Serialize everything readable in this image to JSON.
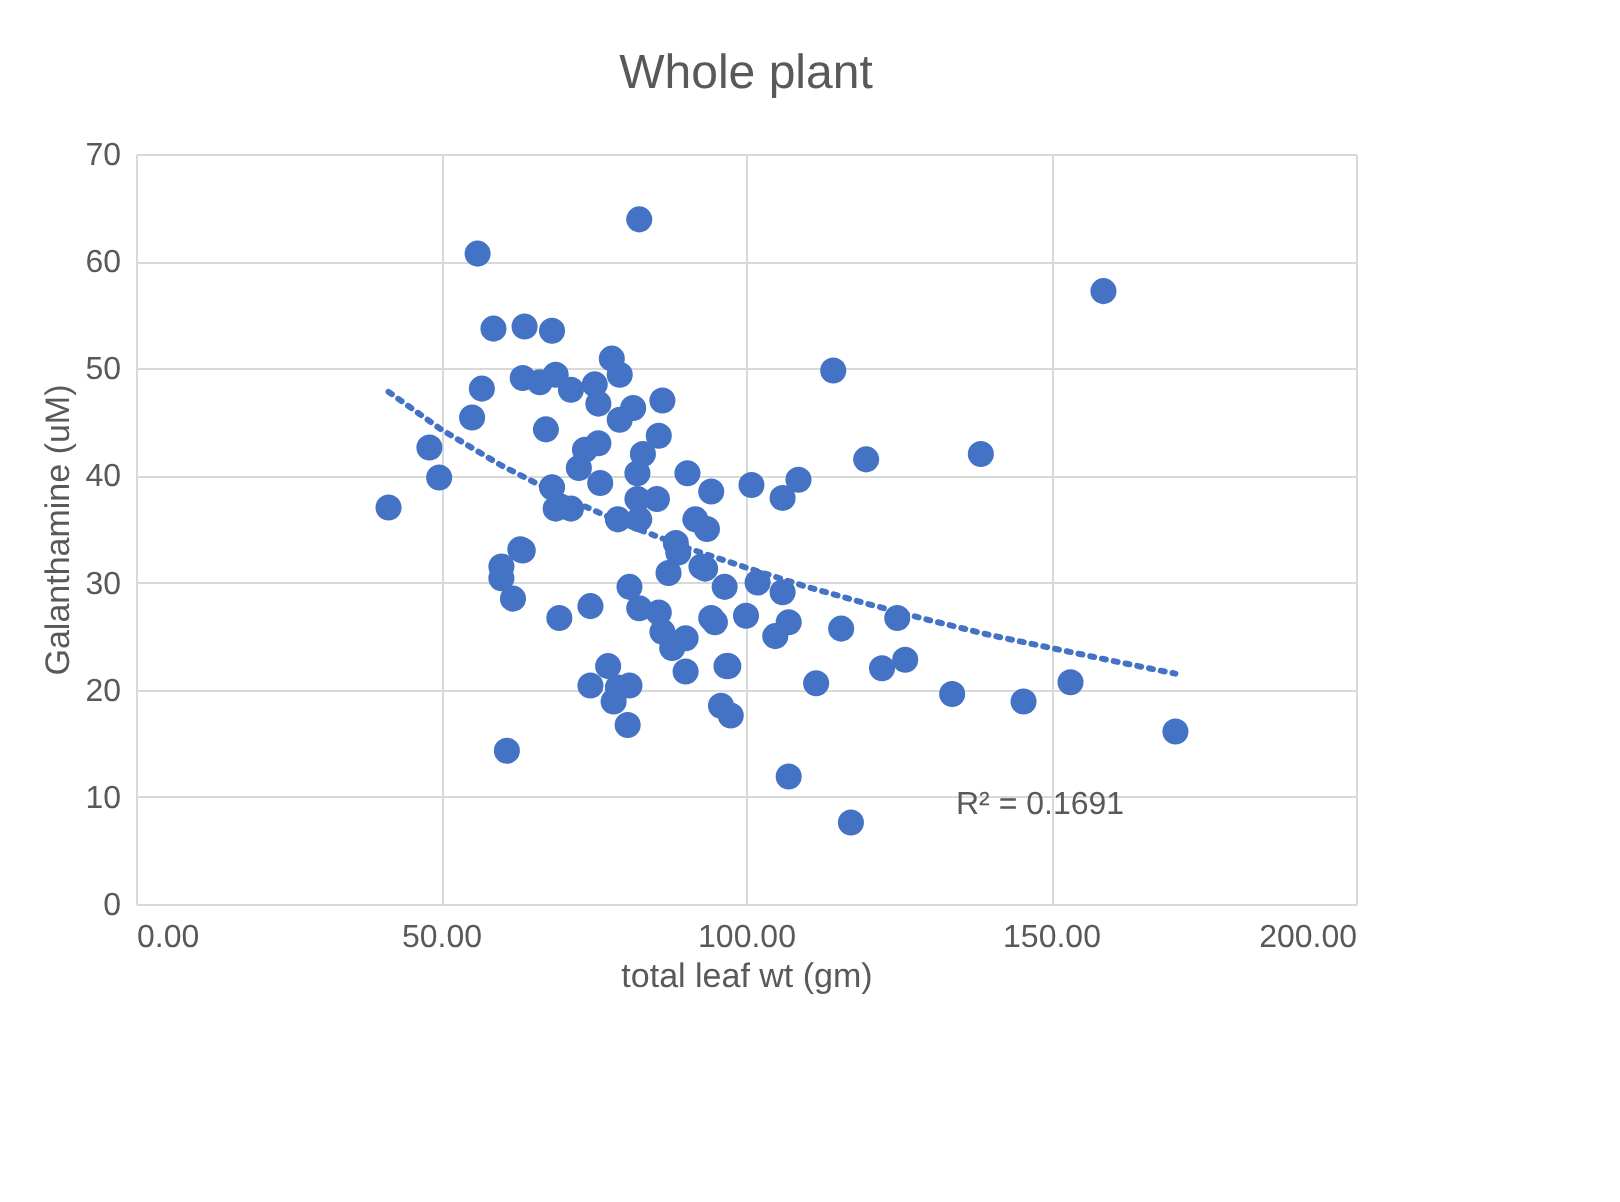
{
  "chart_data": {
    "type": "scatter",
    "title": "Whole plant",
    "xlabel": "total leaf wt (gm)",
    "ylabel": "Galanthamine (uM)",
    "xlim": [
      0,
      200
    ],
    "xticks": [
      {
        "value": 0,
        "label": "0.00"
      },
      {
        "value": 50,
        "label": "50.00"
      },
      {
        "value": 100,
        "label": "100.00"
      },
      {
        "value": 150,
        "label": "150.00"
      },
      {
        "value": 200,
        "label": "200.00"
      }
    ],
    "ylim": [
      0,
      70
    ],
    "yticks": [
      0,
      10,
      20,
      30,
      40,
      50,
      60,
      70
    ],
    "grid": true,
    "legend": false,
    "marker": "circle",
    "annotations": [
      "R² = 0.1691"
    ],
    "series": [
      {
        "color": "#4472c4",
        "x": [
          82.5,
          56,
          58.6,
          63.7,
          68.2,
          78,
          79.3,
          63.4,
          66.2,
          68.8,
          56.7,
          71.3,
          75.2,
          75.8,
          81.5,
          86.3,
          55.1,
          79.3,
          67.2,
          85.7,
          48.1,
          73.6,
          75.8,
          83.1,
          49.7,
          72.6,
          76.1,
          82.2,
          90.4,
          68.2,
          94.3,
          82.2,
          85.4,
          41.4,
          68.8,
          71.3,
          79,
          82.5,
          91.7,
          93.6,
          88.5,
          63,
          59.9,
          63.4,
          59.9,
          61.8,
          69.4,
          74.5,
          80.9,
          82.5,
          85.7,
          86.3,
          90.1,
          87.9,
          90.1,
          93.3,
          96.5,
          94.3,
          96.8,
          95.9,
          97.5,
          77.4,
          74.5,
          79,
          80.9,
          78.3,
          80.6,
          60.8,
          88.9,
          87.3,
          158.6,
          114.3,
          119.7,
          138.5,
          100.9,
          108.6,
          106,
          101.9,
          106,
          100,
          104.8,
          107,
          115.6,
          124.8,
          97.1,
          111.5,
          122.3,
          126.1,
          133.8,
          145.5,
          153.2,
          170.4,
          107,
          117.2,
          92.7,
          94.9
        ],
        "values": [
          63.9,
          60.7,
          53.7,
          53.9,
          53.5,
          50.9,
          49.4,
          49.1,
          48.7,
          49.4,
          48.1,
          48,
          48.5,
          46.7,
          46.3,
          47,
          45.4,
          45.2,
          44.3,
          43.7,
          42.6,
          42.4,
          43,
          42,
          39.8,
          40.7,
          39.3,
          40.2,
          40.2,
          38.9,
          38.5,
          37.8,
          37.8,
          37,
          36.9,
          36.9,
          35.9,
          35.9,
          35.9,
          35,
          33.7,
          33.1,
          31.5,
          33,
          30.4,
          28.5,
          26.7,
          27.8,
          29.6,
          27.6,
          27.2,
          25.4,
          24.8,
          23.9,
          21.7,
          31.3,
          29.6,
          26.7,
          22.2,
          18.5,
          17.6,
          22.2,
          20.4,
          20.2,
          20.4,
          18.9,
          16.7,
          14.3,
          32.8,
          30.9,
          57.2,
          49.8,
          41.5,
          42,
          39.1,
          39.6,
          37.9,
          30,
          29.1,
          26.9,
          25,
          26.3,
          25.7,
          26.7,
          22.2,
          20.6,
          22,
          22.8,
          19.6,
          18.9,
          20.7,
          16.1,
          11.9,
          7.6,
          31.5,
          26.3
        ]
      },
      {
        "type": "line",
        "color": "#4472c4",
        "line_style": "dotted",
        "marker": "none",
        "x": [
          41.4,
          50,
          60,
          70,
          80,
          90,
          100,
          110,
          120,
          130,
          140,
          150,
          160,
          170.4
        ],
        "values": [
          47.8,
          44.3,
          40.9,
          38,
          35.5,
          33.3,
          31.4,
          29.6,
          28,
          26.5,
          25.1,
          23.9,
          22.7,
          21.5
        ]
      }
    ]
  }
}
